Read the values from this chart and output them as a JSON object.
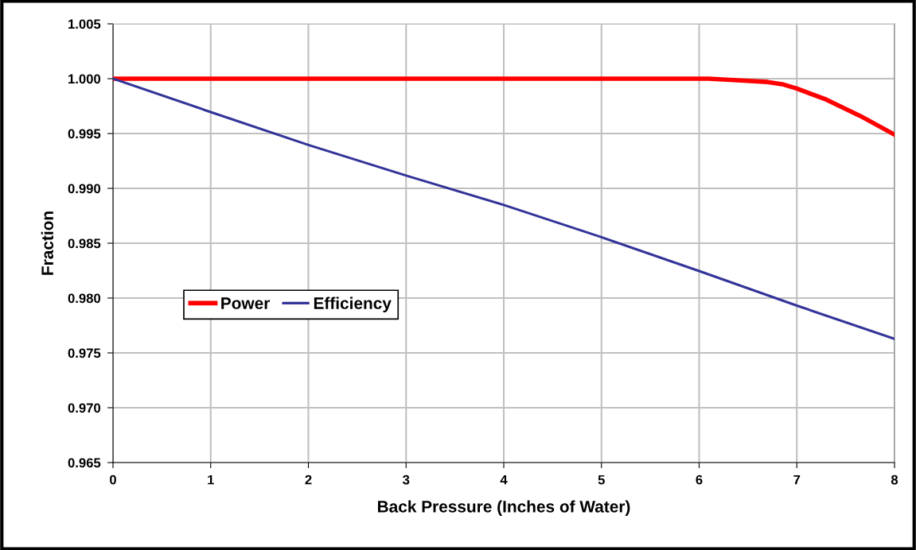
{
  "chart_data": {
    "type": "line",
    "xlabel": "Back Pressure (Inches of Water)",
    "ylabel": "Fraction",
    "xlim": [
      0,
      8
    ],
    "xticks": [
      0,
      1,
      2,
      3,
      4,
      5,
      6,
      7,
      8
    ],
    "ylim": [
      0.965,
      1.005
    ],
    "yticks": [
      {
        "value": 0.965,
        "label": "0.965"
      },
      {
        "value": 0.97,
        "label": "0.970"
      },
      {
        "value": 0.975,
        "label": "0.975"
      },
      {
        "value": 0.98,
        "label": "0.980"
      },
      {
        "value": 0.985,
        "label": "0.985"
      },
      {
        "value": 0.99,
        "label": "0.990"
      },
      {
        "value": 0.995,
        "label": "0.995"
      },
      {
        "value": 1.0,
        "label": "1.000"
      },
      {
        "value": 1.005,
        "label": "1.005"
      }
    ],
    "grid": true,
    "legend": "left",
    "marker": "none",
    "line_style": "solid",
    "series": [
      {
        "name": "Power",
        "color": "#ff0000",
        "x": [
          0,
          6.1,
          6.5,
          6.7,
          6.85,
          7.0,
          7.3,
          7.65,
          8
        ],
        "values": [
          1.0,
          1.0,
          0.9998,
          0.9997,
          0.9995,
          0.9991,
          0.9981,
          0.9966,
          0.9949
        ]
      },
      {
        "name": "Efficiency",
        "color": "#333399",
        "x": [
          0,
          1,
          2,
          3,
          4,
          5,
          6,
          7,
          8
        ],
        "values": [
          1.0,
          0.99696,
          0.99396,
          0.99117,
          0.98849,
          0.98555,
          0.98246,
          0.97931,
          0.97628
        ]
      }
    ]
  }
}
